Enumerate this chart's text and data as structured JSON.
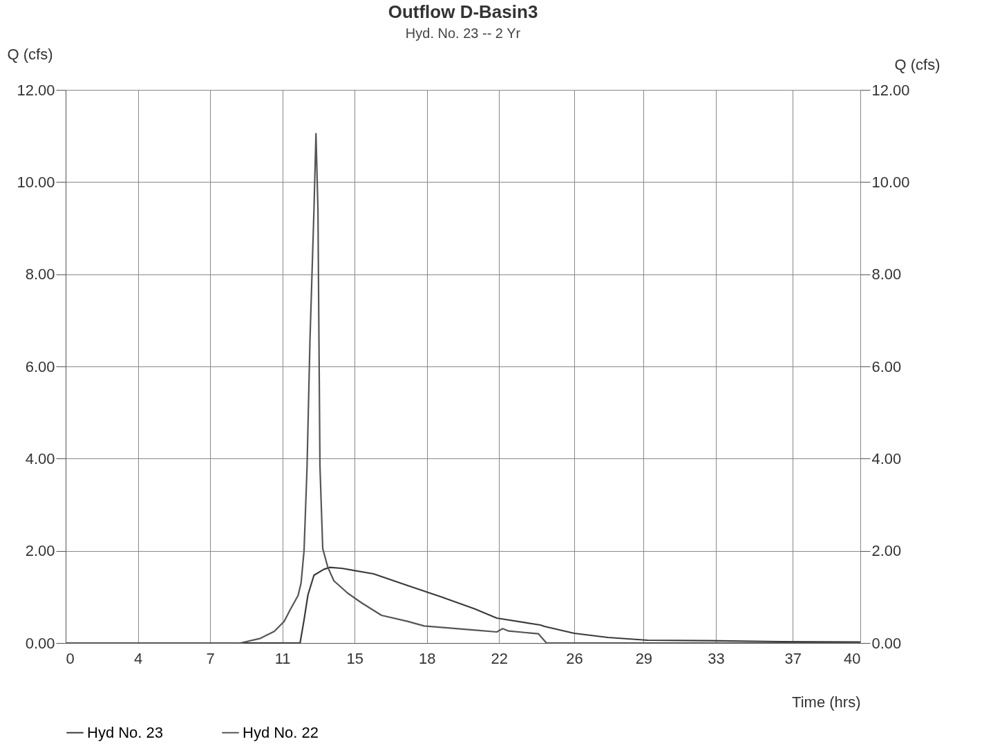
{
  "chart_data": {
    "type": "line",
    "title": "Outflow D-Basin3",
    "subtitle": "Hyd. No. 23 -- 2 Yr",
    "xlabel": "Time (hrs)",
    "ylabel": "Q (cfs)",
    "y2label": "Q (cfs)",
    "xlim": [
      0,
      40
    ],
    "xticks": [
      {
        "value": 0,
        "label": "0"
      },
      {
        "value": 3.636,
        "label": "4"
      },
      {
        "value": 7.273,
        "label": "7"
      },
      {
        "value": 10.909,
        "label": "11"
      },
      {
        "value": 14.545,
        "label": "15"
      },
      {
        "value": 18.182,
        "label": "18"
      },
      {
        "value": 21.818,
        "label": "22"
      },
      {
        "value": 25.6,
        "label": "26"
      },
      {
        "value": 29.091,
        "label": "29"
      },
      {
        "value": 32.727,
        "label": "33"
      },
      {
        "value": 36.6,
        "label": "37"
      },
      {
        "value": 40,
        "label": "40"
      }
    ],
    "ylim": [
      0,
      12
    ],
    "yticks": [
      {
        "value": 0,
        "label": "0.00"
      },
      {
        "value": 2,
        "label": "2.00"
      },
      {
        "value": 4,
        "label": "4.00"
      },
      {
        "value": 6,
        "label": "6.00"
      },
      {
        "value": 8,
        "label": "8.00"
      },
      {
        "value": 10,
        "label": "10.00"
      },
      {
        "value": 12,
        "label": "12.00"
      }
    ],
    "y2lim": [
      0,
      12
    ],
    "y2ticks": [
      {
        "value": 0,
        "label": "0.00"
      },
      {
        "value": 2,
        "label": "2.00"
      },
      {
        "value": 4,
        "label": "4.00"
      },
      {
        "value": 6,
        "label": "6.00"
      },
      {
        "value": 8,
        "label": "8.00"
      },
      {
        "value": 10,
        "label": "10.00"
      },
      {
        "value": 12,
        "label": "12.00"
      }
    ],
    "grid": true,
    "legend": "bottom left",
    "line_style": "solid",
    "marker": "none",
    "series": [
      {
        "name": "Hyd No. 23",
        "color": "#3a3a3a",
        "x": [
          0,
          5,
          10,
          11.8,
          12.0,
          12.2,
          12.5,
          13.0,
          13.3,
          13.9,
          15.5,
          17.2,
          18.9,
          20.6,
          21.7,
          23.9,
          24.1,
          25.6,
          27.3,
          29.3,
          32.3,
          36,
          40
        ],
        "values": [
          0,
          0,
          0,
          0,
          0.5,
          1.05,
          1.47,
          1.6,
          1.64,
          1.62,
          1.5,
          1.25,
          1.0,
          0.74,
          0.54,
          0.39,
          0.36,
          0.21,
          0.12,
          0.06,
          0.05,
          0.03,
          0.02
        ]
      },
      {
        "name": "Hyd No. 22",
        "color": "#555555",
        "x": [
          0,
          5,
          8.8,
          9.8,
          10.5,
          11.0,
          11.3,
          11.7,
          11.85,
          12.0,
          12.15,
          12.3,
          12.5,
          12.6,
          12.7,
          12.75,
          12.8,
          12.94,
          13.2,
          13.5,
          14.2,
          14.9,
          15.9,
          17.2,
          18.05,
          20.6,
          21.7,
          22.0,
          22.3,
          23.8,
          24.2,
          30,
          40
        ],
        "values": [
          0,
          0,
          0,
          0.1,
          0.25,
          0.47,
          0.72,
          1.03,
          1.3,
          2.0,
          3.8,
          6.6,
          9.4,
          11.05,
          9.4,
          6.6,
          3.85,
          2.05,
          1.64,
          1.35,
          1.08,
          0.87,
          0.6,
          0.47,
          0.37,
          0.28,
          0.24,
          0.31,
          0.26,
          0.2,
          0,
          0,
          0
        ]
      }
    ]
  }
}
